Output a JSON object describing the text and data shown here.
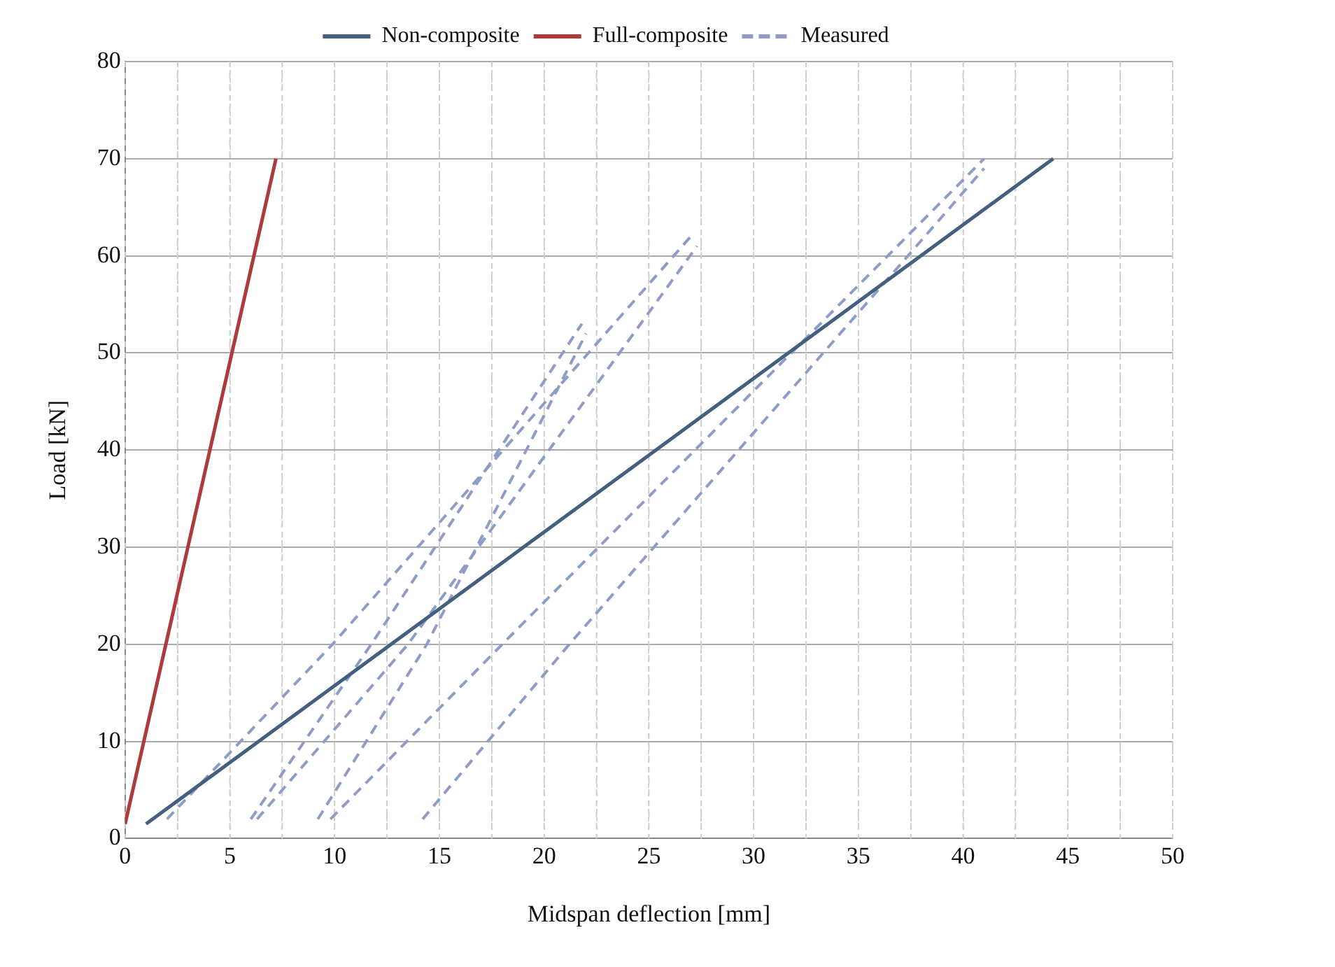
{
  "chart_data": {
    "type": "line",
    "xlabel": "Midspan deflection [mm]",
    "ylabel": "Load [kN]",
    "series": [
      {
        "name": "Non-composite",
        "color": "#44607f",
        "x": [
          1,
          44.3
        ],
        "values": [
          1.5,
          70
        ]
      },
      {
        "name": "Full-composite",
        "color": "#b03a3a",
        "x": [
          0,
          7.2
        ],
        "values": [
          1.5,
          70
        ]
      },
      {
        "name": "Measured",
        "color": "#8e9cc8",
        "line_style": "dashed",
        "x": [
          2,
          9.9,
          27
        ],
        "values": [
          2,
          20,
          62
        ]
      },
      {
        "color": "#8e9cc8",
        "line_style": "dashed",
        "x": [
          6,
          11.75,
          21.8
        ],
        "values": [
          2,
          20,
          53
        ]
      },
      {
        "color": "#8e9cc8",
        "line_style": "dashed",
        "x": [
          6.3,
          13.5,
          27.3
        ],
        "values": [
          2,
          20,
          61
        ]
      },
      {
        "color": "#8e9cc8",
        "line_style": "dashed",
        "x": [
          9.2,
          14.4,
          22
        ],
        "values": [
          2,
          20,
          52
        ]
      },
      {
        "color": "#8e9cc8",
        "line_style": "dashed",
        "x": [
          9.8,
          18,
          41
        ],
        "values": [
          2,
          20,
          70
        ]
      },
      {
        "color": "#8e9cc8",
        "line_style": "dashed",
        "x": [
          14.2,
          21.2,
          41
        ],
        "values": [
          2,
          20,
          69
        ]
      }
    ],
    "xlim": [
      0,
      50
    ],
    "xticks": [
      0,
      {
        "value": 2.5,
        "label": null
      },
      5,
      {
        "value": 7.5,
        "label": null
      },
      10,
      {
        "value": 12.5,
        "label": null
      },
      15,
      {
        "value": 17.5,
        "label": null
      },
      20,
      {
        "value": 22.5,
        "label": null
      },
      25,
      {
        "value": 27.5,
        "label": null
      },
      30,
      {
        "value": 32.5,
        "label": null
      },
      35,
      {
        "value": 37.5,
        "label": null
      },
      40,
      {
        "value": 42.5,
        "label": null
      },
      45,
      {
        "value": 47.5,
        "label": null
      },
      50
    ],
    "ylim": [
      0,
      80
    ],
    "yticks": [
      0,
      10,
      20,
      30,
      40,
      50,
      60,
      70,
      80
    ],
    "grid": true,
    "legend": "top",
    "marker": "none",
    "line_style": "solid"
  }
}
